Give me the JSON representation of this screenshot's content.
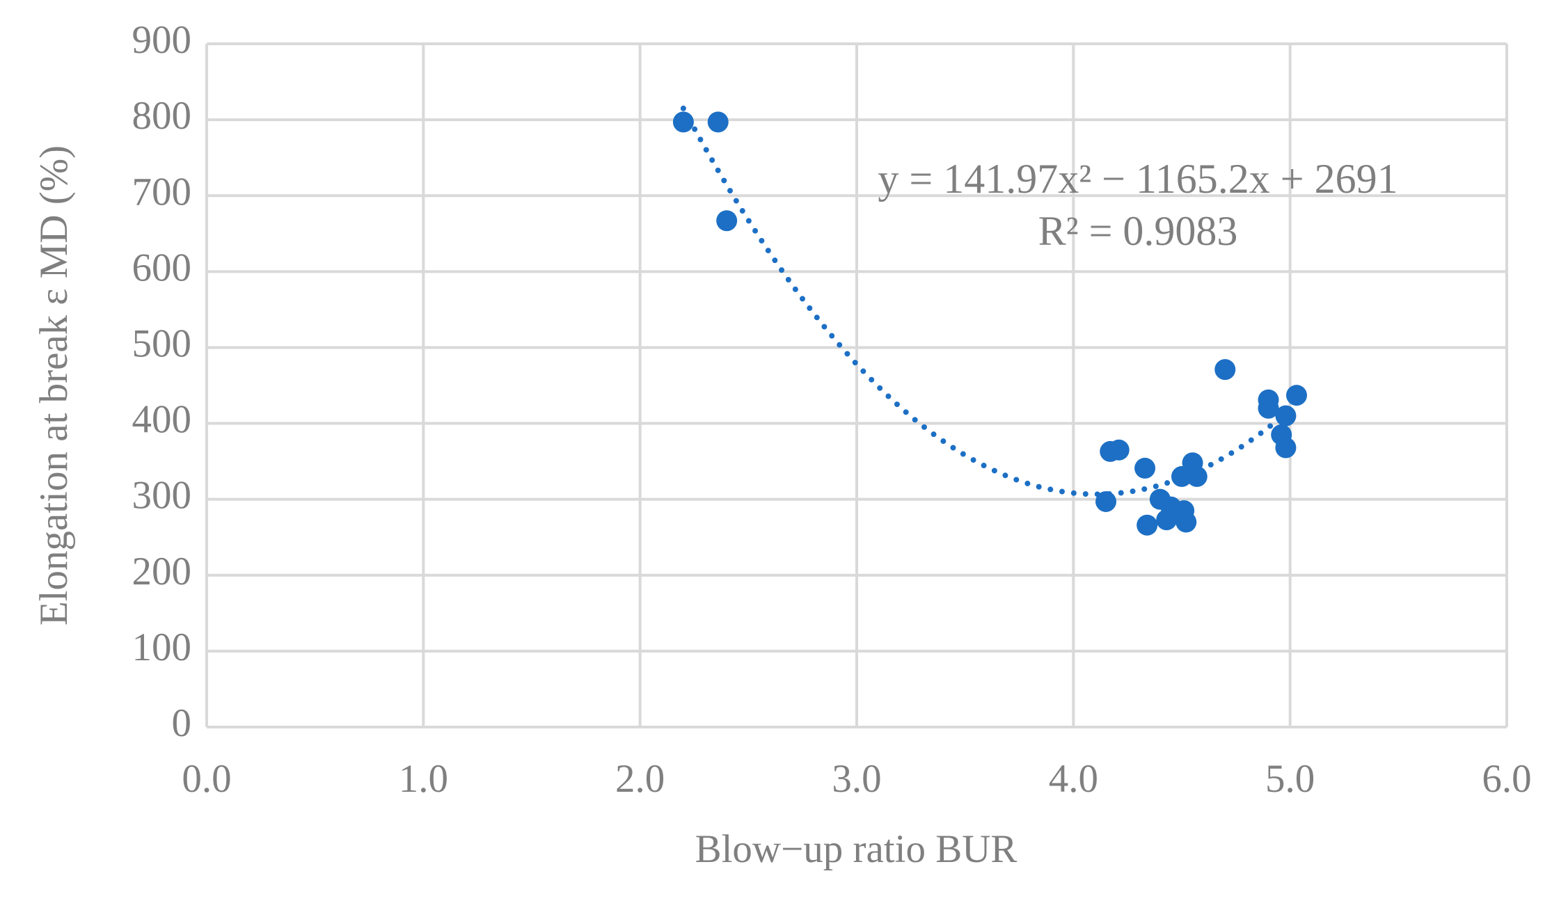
{
  "chart_data": {
    "type": "scatter",
    "x_label": "Blow−up ratio BUR",
    "y_label": "Elongation at break ε MD (%)",
    "annotations": [
      "y = 141.97x² − 1165.2x + 2691",
      "R² = 0.9083"
    ],
    "trendline": "polynomial",
    "grid": true,
    "series": [
      {
        "color": "#1c6fc4",
        "x": [
          2.2,
          2.36,
          2.4,
          4.15,
          4.17,
          4.21,
          4.33,
          4.34,
          4.4,
          4.43,
          4.45,
          4.5,
          4.51,
          4.52,
          4.55,
          4.57,
          4.7,
          4.9,
          4.9,
          4.96,
          4.98,
          4.98,
          5.03
        ],
        "values": [
          797,
          797,
          667,
          297,
          363,
          365,
          341,
          266,
          300,
          273,
          290,
          330,
          285,
          270,
          348,
          330,
          471,
          431,
          420,
          385,
          368,
          410,
          437
        ]
      }
    ],
    "xlim": [
      0,
      6
    ],
    "xticks": [
      {
        "value": 0,
        "label": "0.0"
      },
      {
        "value": 1,
        "label": "1.0"
      },
      {
        "value": 2,
        "label": "2.0"
      },
      {
        "value": 3,
        "label": "3.0"
      },
      {
        "value": 4,
        "label": "4.0"
      },
      {
        "value": 5,
        "label": "5.0"
      },
      {
        "value": 6,
        "label": "6.0"
      }
    ],
    "ylim": [
      0,
      900
    ],
    "yticks": [
      0,
      100,
      200,
      300,
      400,
      500,
      600,
      700,
      800,
      900
    ]
  }
}
